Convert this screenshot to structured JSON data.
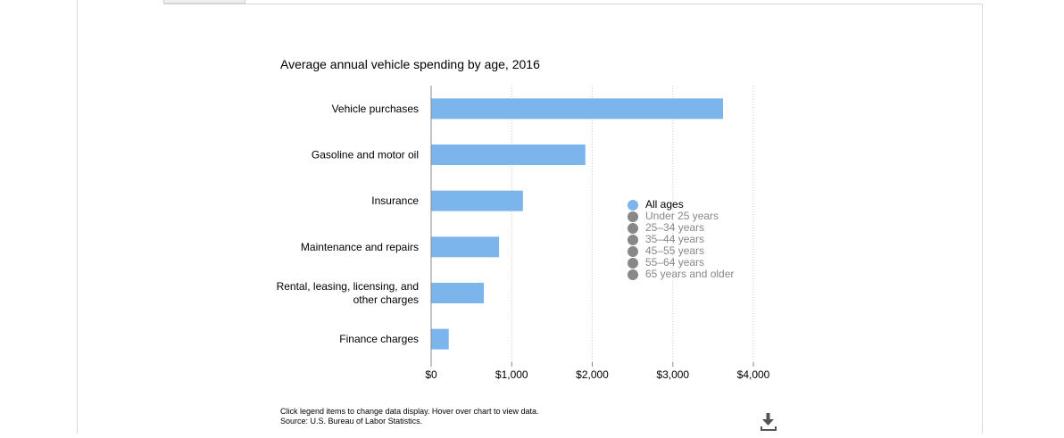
{
  "chart_data": {
    "type": "bar",
    "orientation": "horizontal",
    "title": "Average annual vehicle spending by age, 2016",
    "categories": [
      "Vehicle purchases",
      "Gasoline and motor oil",
      "Insurance",
      "Maintenance and repairs",
      "Rental, leasing, licensing, and other charges",
      "Finance charges"
    ],
    "category_label_lines": [
      [
        "Vehicle purchases"
      ],
      [
        "Gasoline and motor oil"
      ],
      [
        "Insurance"
      ],
      [
        "Maintenance and repairs"
      ],
      [
        "Rental, leasing, licensing, and",
        "other charges"
      ],
      [
        "Finance charges"
      ]
    ],
    "series": [
      {
        "name": "All ages",
        "values": [
          3618,
          1909,
          1134,
          838,
          648,
          213
        ]
      }
    ],
    "xlim": [
      0,
      4000
    ],
    "xticks": [
      0,
      1000,
      2000,
      3000,
      4000
    ],
    "xtick_labels": [
      "$0",
      "$1,000",
      "$2,000",
      "$3,000",
      "$4,000"
    ],
    "xlabel": "",
    "ylabel": "",
    "grid": "vertical dotted",
    "legend_position": "right",
    "legend": [
      {
        "label": "All ages",
        "color": "#7cb5ec",
        "active": true
      },
      {
        "label": "Under 25 years",
        "color": "#888888",
        "active": false
      },
      {
        "label": "25–34 years",
        "color": "#888888",
        "active": false
      },
      {
        "label": "35–44 years",
        "color": "#888888",
        "active": false
      },
      {
        "label": "45–55 years",
        "color": "#888888",
        "active": false
      },
      {
        "label": "55–64 years",
        "color": "#888888",
        "active": false
      },
      {
        "label": "65 years and older",
        "color": "#888888",
        "active": false
      }
    ],
    "bar_color": "#7cb5ec"
  },
  "notes": {
    "instructions": "Click legend items to change data display. Hover over chart to view data.",
    "source": "Source: U.S. Bureau of Labor Statistics."
  },
  "download_icon": "download-icon"
}
